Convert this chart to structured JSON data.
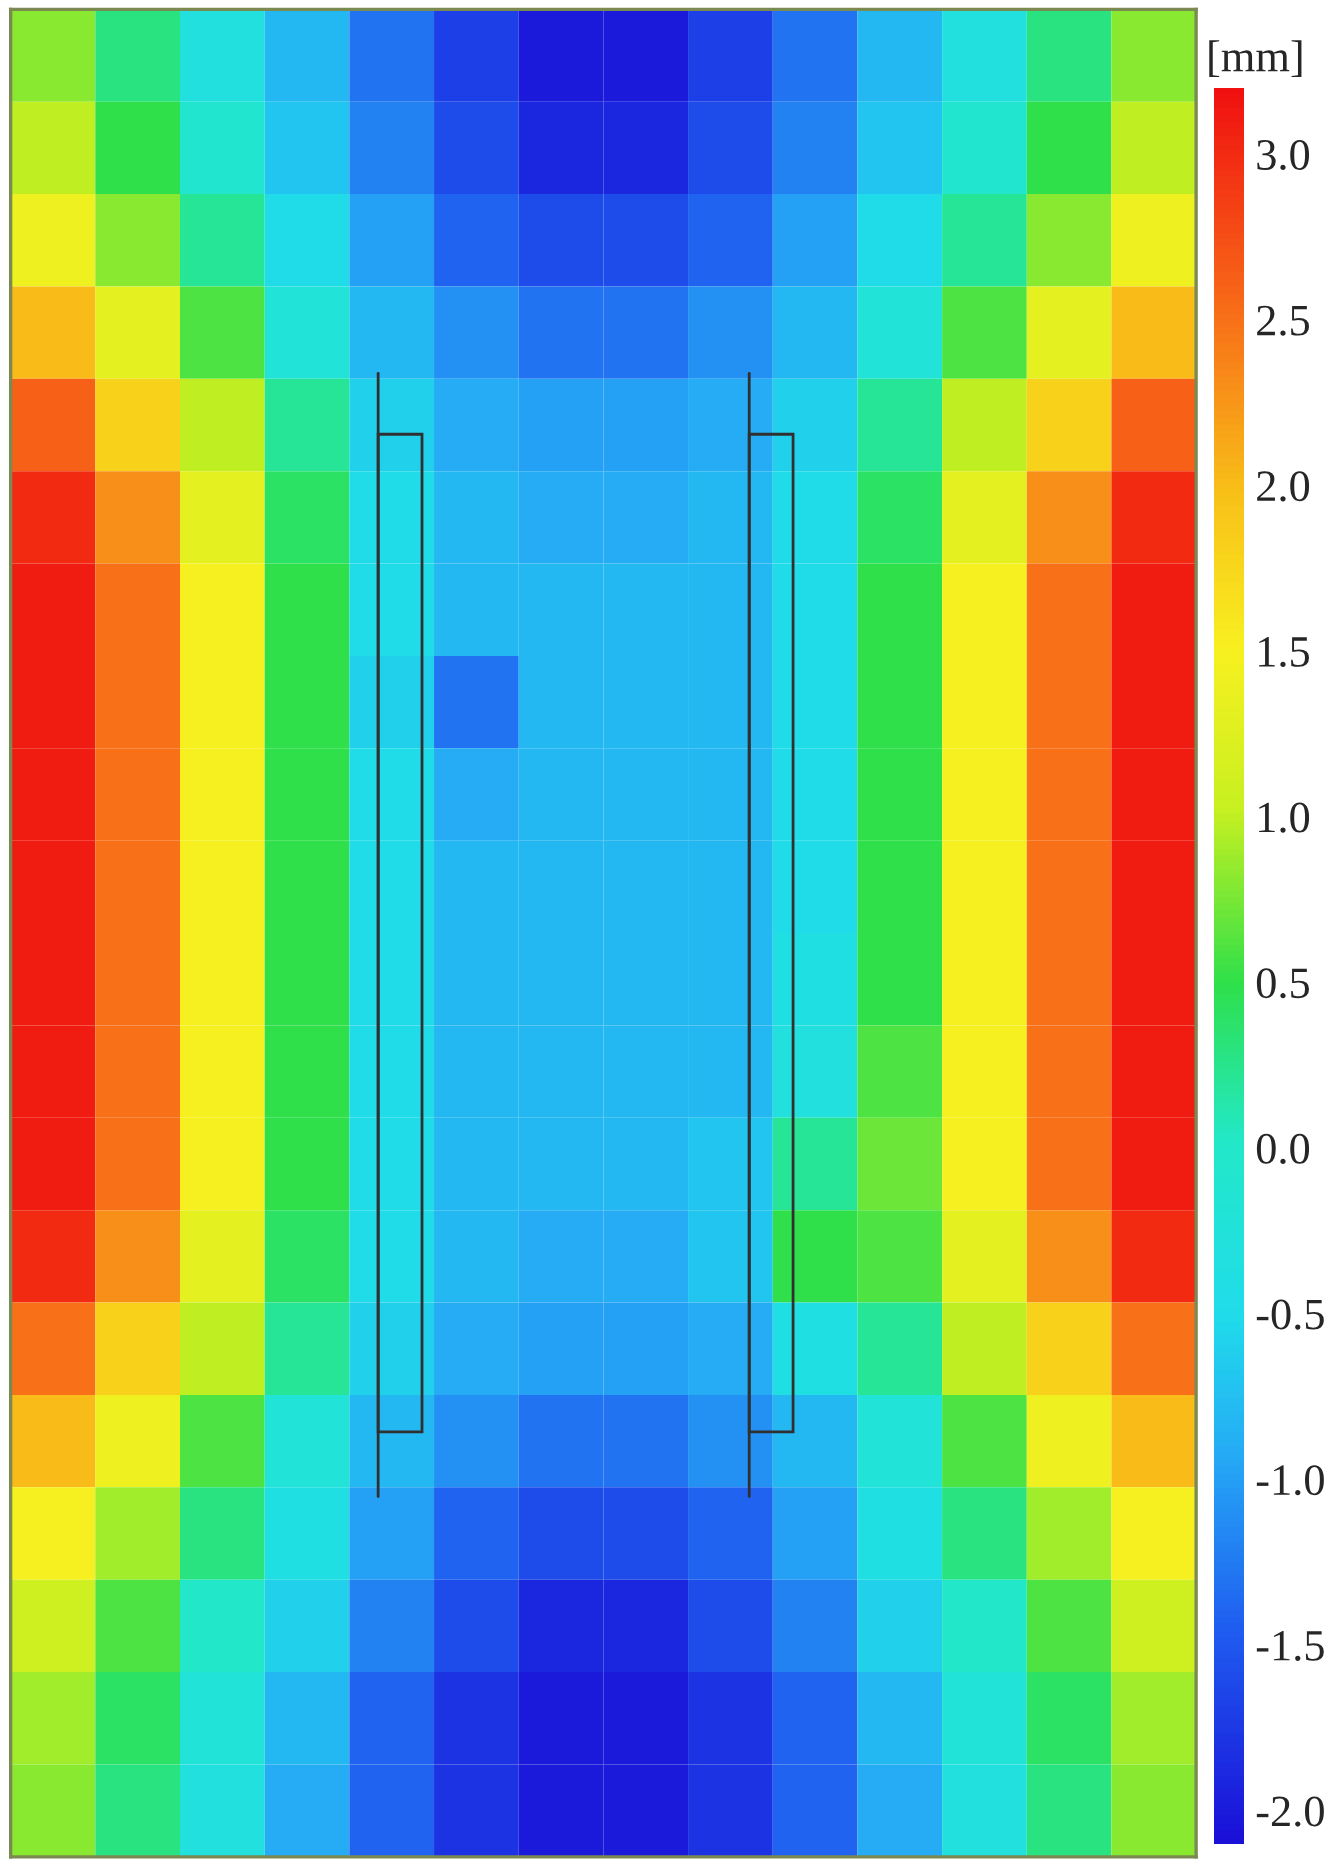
{
  "chart_data": {
    "type": "heatmap",
    "clabel": "[mm]",
    "categories": [
      null,
      null,
      null,
      null,
      null,
      null,
      null,
      null,
      null,
      null,
      null,
      null,
      null,
      null
    ],
    "y_categories": [
      null,
      null,
      null,
      null,
      null,
      null,
      null,
      null,
      null,
      null,
      null,
      null,
      null,
      null,
      null,
      null,
      null,
      null,
      null,
      null
    ],
    "cells": [
      [
        0.8,
        0.3,
        -0.3,
        -0.8,
        -1.3,
        -1.7,
        -2.0,
        -2.0,
        -1.7,
        -1.3,
        -0.8,
        -0.3,
        0.3,
        0.8
      ],
      [
        1.0,
        0.5,
        -0.1,
        -0.7,
        -1.2,
        -1.6,
        -1.9,
        -1.9,
        -1.6,
        -1.2,
        -0.7,
        -0.1,
        0.5,
        1.0
      ],
      [
        1.4,
        0.8,
        0.2,
        -0.5,
        -1.0,
        -1.4,
        -1.6,
        -1.6,
        -1.4,
        -1.0,
        -0.5,
        0.2,
        0.8,
        1.4
      ],
      [
        2.0,
        1.3,
        0.6,
        -0.2,
        -0.8,
        -1.1,
        -1.3,
        -1.3,
        -1.1,
        -0.8,
        -0.2,
        0.6,
        1.3,
        2.0
      ],
      [
        2.6,
        1.8,
        1.0,
        0.2,
        -0.6,
        -0.9,
        -1.0,
        -1.0,
        -0.9,
        -0.6,
        0.2,
        1.0,
        1.8,
        2.6
      ],
      [
        3.0,
        2.3,
        1.3,
        0.4,
        -0.5,
        -0.8,
        -0.9,
        -0.9,
        -0.8,
        -0.5,
        0.4,
        1.3,
        2.3,
        3.0
      ],
      [
        3.1,
        2.5,
        1.5,
        0.5,
        -0.5,
        -0.8,
        -0.8,
        -0.8,
        -0.8,
        -0.5,
        0.5,
        1.5,
        2.5,
        3.1
      ],
      [
        3.1,
        2.5,
        1.5,
        0.5,
        -0.6,
        -1.3,
        -0.8,
        -0.8,
        -0.8,
        -0.5,
        0.5,
        1.5,
        2.5,
        3.1
      ],
      [
        3.1,
        2.5,
        1.5,
        0.5,
        -0.5,
        -0.9,
        -0.8,
        -0.8,
        -0.8,
        -0.5,
        0.5,
        1.5,
        2.5,
        3.1
      ],
      [
        3.1,
        2.5,
        1.5,
        0.5,
        -0.5,
        -0.8,
        -0.8,
        -0.8,
        -0.8,
        -0.5,
        0.5,
        1.5,
        2.5,
        3.1
      ],
      [
        3.1,
        2.5,
        1.5,
        0.5,
        -0.5,
        -0.8,
        -0.8,
        -0.8,
        -0.8,
        -0.4,
        0.5,
        1.5,
        2.5,
        3.1
      ],
      [
        3.1,
        2.5,
        1.5,
        0.5,
        -0.5,
        -0.8,
        -0.8,
        -0.8,
        -0.8,
        -0.3,
        0.6,
        1.5,
        2.5,
        3.1
      ],
      [
        3.1,
        2.5,
        1.5,
        0.5,
        -0.5,
        -0.8,
        -0.8,
        -0.8,
        -0.7,
        0.2,
        0.7,
        1.5,
        2.5,
        3.1
      ],
      [
        3.0,
        2.3,
        1.3,
        0.4,
        -0.5,
        -0.8,
        -0.9,
        -0.9,
        -0.7,
        0.5,
        0.6,
        1.3,
        2.3,
        3.0
      ],
      [
        2.5,
        1.8,
        1.0,
        0.2,
        -0.6,
        -0.9,
        -1.0,
        -1.0,
        -0.9,
        -0.4,
        0.2,
        1.0,
        1.8,
        2.5
      ],
      [
        2.0,
        1.4,
        0.6,
        -0.2,
        -0.8,
        -1.1,
        -1.3,
        -1.3,
        -1.1,
        -0.8,
        -0.2,
        0.6,
        1.4,
        2.0
      ],
      [
        1.5,
        0.9,
        0.3,
        -0.4,
        -1.0,
        -1.4,
        -1.6,
        -1.6,
        -1.4,
        -1.0,
        -0.4,
        0.3,
        0.9,
        1.5
      ],
      [
        1.1,
        0.6,
        0.0,
        -0.6,
        -1.2,
        -1.6,
        -1.9,
        -1.9,
        -1.6,
        -1.2,
        -0.6,
        0.0,
        0.6,
        1.1
      ],
      [
        0.9,
        0.4,
        -0.2,
        -0.8,
        -1.4,
        -1.8,
        -2.0,
        -2.0,
        -1.8,
        -1.4,
        -0.8,
        -0.2,
        0.4,
        0.9
      ],
      [
        0.8,
        0.3,
        -0.3,
        -0.9,
        -1.4,
        -1.8,
        -2.0,
        -2.0,
        -1.8,
        -1.4,
        -0.9,
        -0.3,
        0.3,
        0.8
      ]
    ],
    "clim": [
      -2.1,
      3.2
    ],
    "cticks": [
      {
        "value": 3.0,
        "label": "3.0"
      },
      {
        "value": 2.5,
        "label": "2.5"
      },
      {
        "value": 2.0,
        "label": "2.0"
      },
      {
        "value": 1.5,
        "label": "1.5"
      },
      {
        "value": 1.0,
        "label": "1.0"
      },
      {
        "value": 0.5,
        "label": "0.5"
      },
      {
        "value": 0.0,
        "label": "0.0"
      },
      {
        "value": -0.5,
        "label": "-0.5"
      },
      {
        "value": -1.0,
        "label": "-1.0"
      },
      {
        "value": -1.5,
        "label": "-1.5"
      },
      {
        "value": -2.0,
        "label": "-2.0"
      }
    ]
  }
}
